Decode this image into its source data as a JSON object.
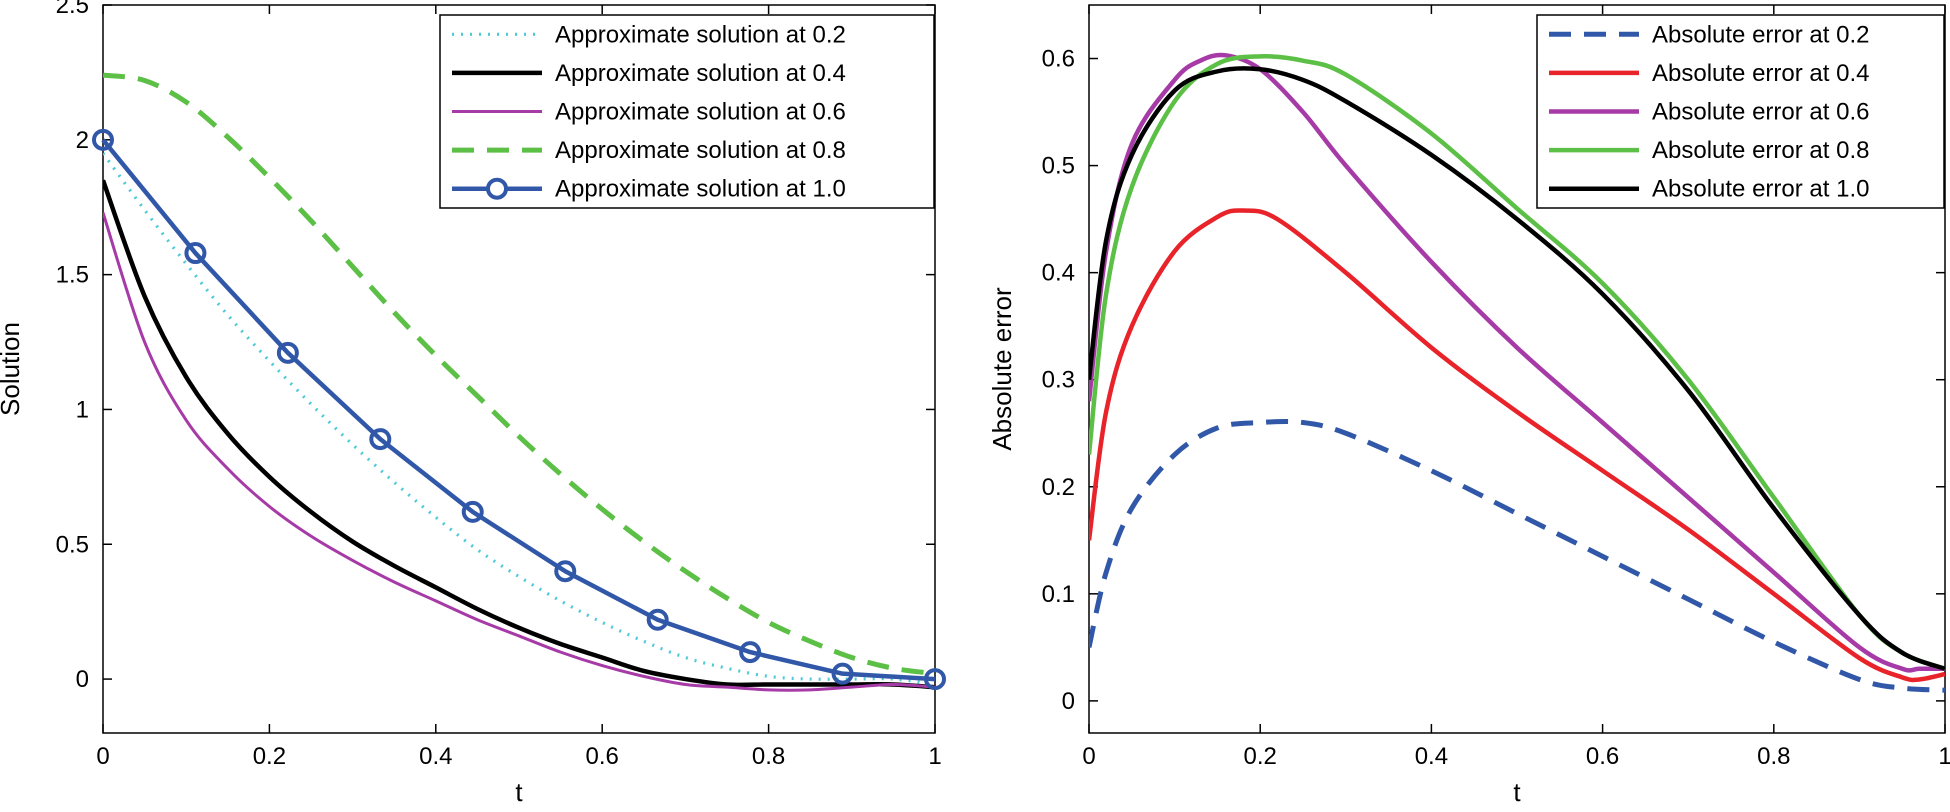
{
  "chart_data": [
    {
      "type": "line",
      "title": "",
      "xlabel": "t",
      "ylabel": "Solution",
      "xlim": [
        0,
        1
      ],
      "ylim": [
        -0.2,
        2.5
      ],
      "xticks": [
        "0",
        "0.2",
        "0.4",
        "0.6",
        "0.8",
        "1"
      ],
      "yticks": [
        "0",
        "0.5",
        "1",
        "1.5",
        "2",
        "2.5"
      ],
      "legend_position": "top-right",
      "series": [
        {
          "name": "Approximate solution at 0.2",
          "color": "#4ec9d8",
          "style": "dotted",
          "x": [
            0,
            0.05,
            0.1,
            0.15,
            0.2,
            0.25,
            0.3,
            0.35,
            0.4,
            0.45,
            0.5,
            0.55,
            0.6,
            0.65,
            0.7,
            0.75,
            0.8,
            0.85,
            0.9,
            0.95,
            1.0
          ],
          "y": [
            1.95,
            1.74,
            1.54,
            1.35,
            1.18,
            1.02,
            0.87,
            0.73,
            0.6,
            0.48,
            0.38,
            0.29,
            0.21,
            0.14,
            0.08,
            0.04,
            0.01,
            0.0,
            0.0,
            0.0,
            -0.02
          ]
        },
        {
          "name": "Approximate solution at 0.4",
          "color": "#000000",
          "style": "solid",
          "x": [
            0,
            0.05,
            0.1,
            0.15,
            0.2,
            0.25,
            0.3,
            0.35,
            0.4,
            0.45,
            0.5,
            0.55,
            0.6,
            0.65,
            0.7,
            0.75,
            0.8,
            0.85,
            0.9,
            0.95,
            1.0
          ],
          "y": [
            1.85,
            1.42,
            1.12,
            0.91,
            0.75,
            0.62,
            0.51,
            0.42,
            0.34,
            0.26,
            0.19,
            0.13,
            0.08,
            0.03,
            0.0,
            -0.02,
            -0.02,
            -0.02,
            -0.02,
            -0.02,
            -0.03
          ]
        },
        {
          "name": "Approximate solution at 0.6",
          "color": "#a63aa6",
          "style": "thin",
          "x": [
            0,
            0.05,
            0.1,
            0.15,
            0.2,
            0.25,
            0.3,
            0.35,
            0.4,
            0.45,
            0.5,
            0.55,
            0.6,
            0.65,
            0.7,
            0.75,
            0.8,
            0.85,
            0.9,
            0.95,
            1.0
          ],
          "y": [
            1.73,
            1.25,
            0.96,
            0.78,
            0.64,
            0.53,
            0.44,
            0.36,
            0.29,
            0.22,
            0.16,
            0.1,
            0.05,
            0.01,
            -0.02,
            -0.03,
            -0.04,
            -0.04,
            -0.03,
            -0.02,
            -0.03
          ]
        },
        {
          "name": "Approximate solution at 0.8",
          "color": "#5cbf46",
          "style": "dashed",
          "x": [
            0,
            0.05,
            0.1,
            0.15,
            0.2,
            0.25,
            0.3,
            0.35,
            0.4,
            0.45,
            0.5,
            0.55,
            0.6,
            0.65,
            0.7,
            0.75,
            0.8,
            0.85,
            0.9,
            0.95,
            1.0
          ],
          "y": [
            2.24,
            2.22,
            2.14,
            2.01,
            1.86,
            1.7,
            1.53,
            1.36,
            1.2,
            1.05,
            0.9,
            0.76,
            0.63,
            0.51,
            0.4,
            0.3,
            0.21,
            0.14,
            0.08,
            0.04,
            0.02
          ]
        },
        {
          "name": "Approximate solution at 1.0",
          "color": "#3158a8",
          "style": "markers",
          "x": [
            0,
            0.1111,
            0.2222,
            0.3333,
            0.4444,
            0.5556,
            0.6667,
            0.7778,
            0.8889,
            1.0
          ],
          "y": [
            2.0,
            1.58,
            1.21,
            0.89,
            0.62,
            0.4,
            0.22,
            0.1,
            0.02,
            0.0
          ]
        }
      ]
    },
    {
      "type": "line",
      "title": "",
      "xlabel": "t",
      "ylabel": "Absolute error",
      "xlim": [
        0,
        1
      ],
      "ylim": [
        -0.03,
        0.65
      ],
      "xticks": [
        "0",
        "0.2",
        "0.4",
        "0.6",
        "0.8",
        "1"
      ],
      "yticks": [
        "0",
        "0.1",
        "0.2",
        "0.3",
        "0.4",
        "0.5",
        "0.6"
      ],
      "legend_position": "top-right",
      "series": [
        {
          "name": "Absolute error at 0.2",
          "color": "#3158a8",
          "style": "dashed",
          "x": [
            0,
            0.02,
            0.05,
            0.1,
            0.15,
            0.2,
            0.25,
            0.3,
            0.4,
            0.5,
            0.6,
            0.7,
            0.8,
            0.9,
            0.95,
            1.0
          ],
          "y": [
            0.05,
            0.12,
            0.18,
            0.23,
            0.255,
            0.26,
            0.26,
            0.25,
            0.215,
            0.175,
            0.135,
            0.095,
            0.055,
            0.02,
            0.012,
            0.01
          ]
        },
        {
          "name": "Absolute error at 0.4",
          "color": "#e8232a",
          "style": "solid",
          "x": [
            0,
            0.02,
            0.05,
            0.1,
            0.15,
            0.18,
            0.22,
            0.3,
            0.4,
            0.5,
            0.6,
            0.7,
            0.8,
            0.9,
            0.95,
            0.97,
            1.0
          ],
          "y": [
            0.15,
            0.27,
            0.35,
            0.42,
            0.452,
            0.458,
            0.45,
            0.4,
            0.33,
            0.27,
            0.215,
            0.16,
            0.1,
            0.04,
            0.022,
            0.02,
            0.025
          ]
        },
        {
          "name": "Absolute error at 0.6",
          "color": "#a63aa6",
          "style": "solid",
          "x": [
            0,
            0.02,
            0.05,
            0.1,
            0.13,
            0.16,
            0.2,
            0.25,
            0.3,
            0.4,
            0.5,
            0.6,
            0.7,
            0.8,
            0.9,
            0.95,
            0.97,
            1.0
          ],
          "y": [
            0.28,
            0.42,
            0.52,
            0.58,
            0.598,
            0.603,
            0.59,
            0.55,
            0.5,
            0.41,
            0.33,
            0.26,
            0.19,
            0.12,
            0.05,
            0.03,
            0.03,
            0.03
          ]
        },
        {
          "name": "Absolute error at 0.8",
          "color": "#5cbf46",
          "style": "solid",
          "x": [
            0,
            0.02,
            0.05,
            0.1,
            0.15,
            0.2,
            0.25,
            0.3,
            0.4,
            0.5,
            0.6,
            0.7,
            0.8,
            0.9,
            0.95,
            1.0
          ],
          "y": [
            0.23,
            0.38,
            0.48,
            0.56,
            0.595,
            0.602,
            0.598,
            0.585,
            0.53,
            0.46,
            0.39,
            0.3,
            0.19,
            0.08,
            0.045,
            0.03
          ]
        },
        {
          "name": "Absolute error at 1.0",
          "color": "#000000",
          "style": "solid",
          "x": [
            0,
            0.02,
            0.05,
            0.1,
            0.15,
            0.2,
            0.25,
            0.3,
            0.4,
            0.5,
            0.6,
            0.7,
            0.8,
            0.9,
            0.95,
            1.0
          ],
          "y": [
            0.3,
            0.43,
            0.51,
            0.57,
            0.588,
            0.59,
            0.58,
            0.56,
            0.51,
            0.45,
            0.38,
            0.29,
            0.18,
            0.08,
            0.045,
            0.03
          ]
        }
      ]
    }
  ]
}
